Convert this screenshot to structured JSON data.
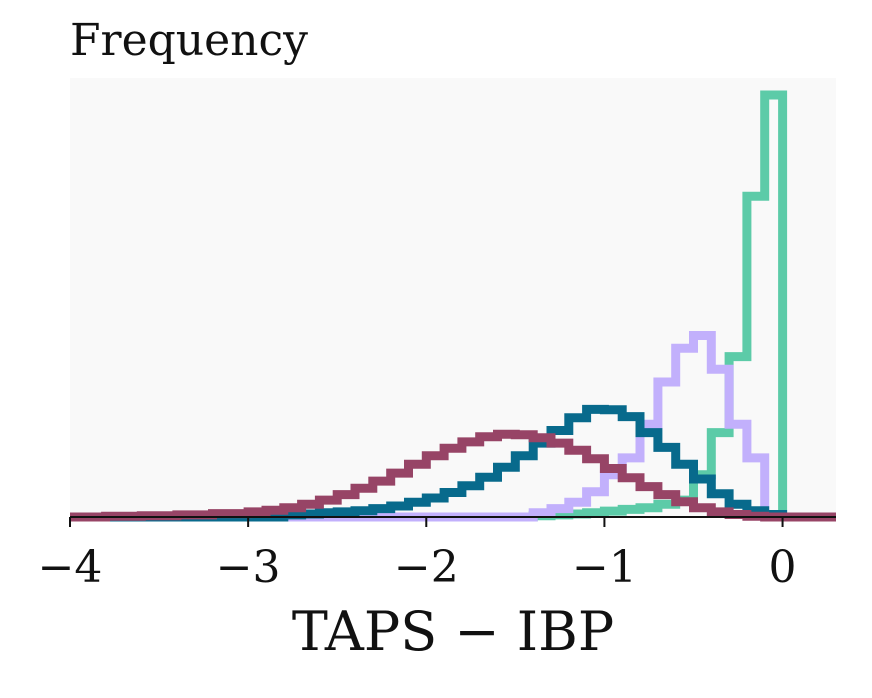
{
  "chart_data": {
    "type": "histogram",
    "title": "",
    "ylabel": "Frequency",
    "xlabel": "TAPS − IBP",
    "xlim": [
      -4.0,
      0.3
    ],
    "ylim": [
      0,
      1.0
    ],
    "xticks": [
      -4,
      -3,
      -2,
      -1,
      0
    ],
    "xtick_labels": [
      "−4",
      "−3",
      "−2",
      "−1",
      "0"
    ],
    "y_ticks_shown": false,
    "grid": false,
    "legend": "none",
    "background": "#f9f9f9",
    "series": [
      {
        "color": "#5ccba8",
        "edges": [
          -4.0,
          -1.4,
          -1.3,
          -1.2,
          -1.1,
          -1.0,
          -0.9,
          -0.8,
          -0.7,
          -0.6,
          -0.5,
          -0.4,
          -0.3,
          -0.2,
          -0.1,
          0.0,
          0.3
        ],
        "heights": [
          0.0,
          0.003,
          0.005,
          0.007,
          0.01,
          0.014,
          0.018,
          0.022,
          0.03,
          0.04,
          0.1,
          0.2,
          0.38,
          0.76,
          1.0,
          0.0
        ]
      },
      {
        "color": "#c2b0fc",
        "edges": [
          -4.0,
          -1.4,
          -1.3,
          -1.2,
          -1.1,
          -1.0,
          -0.9,
          -0.8,
          -0.7,
          -0.6,
          -0.5,
          -0.4,
          -0.3,
          -0.2,
          -0.1,
          0.0,
          0.3
        ],
        "heights": [
          0.0,
          0.01,
          0.02,
          0.035,
          0.06,
          0.1,
          0.14,
          0.22,
          0.32,
          0.4,
          0.43,
          0.35,
          0.22,
          0.14,
          0.0,
          0.0
        ]
      },
      {
        "color": "#086a8c",
        "edges": [
          -4.0,
          -2.8,
          -2.7,
          -2.6,
          -2.5,
          -2.4,
          -2.3,
          -2.2,
          -2.1,
          -2.0,
          -1.9,
          -1.8,
          -1.7,
          -1.6,
          -1.5,
          -1.4,
          -1.3,
          -1.2,
          -1.1,
          -1.0,
          -0.9,
          -0.8,
          -0.7,
          -0.6,
          -0.5,
          -0.4,
          -0.3,
          -0.2,
          -0.1,
          0.0,
          0.3
        ],
        "heights": [
          0.0,
          0.005,
          0.007,
          0.01,
          0.012,
          0.015,
          0.02,
          0.026,
          0.035,
          0.045,
          0.058,
          0.074,
          0.094,
          0.118,
          0.145,
          0.175,
          0.205,
          0.235,
          0.255,
          0.254,
          0.238,
          0.2,
          0.165,
          0.125,
          0.09,
          0.055,
          0.03,
          0.015,
          0.006,
          0.0
        ]
      },
      {
        "color": "#974466",
        "edges": [
          -4.0,
          -3.8,
          -3.6,
          -3.4,
          -3.2,
          -3.0,
          -2.9,
          -2.8,
          -2.7,
          -2.6,
          -2.5,
          -2.4,
          -2.3,
          -2.2,
          -2.1,
          -2.0,
          -1.9,
          -1.8,
          -1.7,
          -1.6,
          -1.5,
          -1.4,
          -1.3,
          -1.2,
          -1.1,
          -1.0,
          -0.9,
          -0.8,
          -0.7,
          -0.6,
          -0.5,
          -0.4,
          -0.3,
          -0.2,
          -0.1,
          0.0,
          0.3
        ],
        "heights": [
          0.0,
          0.002,
          0.003,
          0.005,
          0.008,
          0.012,
          0.016,
          0.022,
          0.03,
          0.04,
          0.053,
          0.068,
          0.085,
          0.104,
          0.125,
          0.145,
          0.163,
          0.178,
          0.19,
          0.196,
          0.195,
          0.188,
          0.175,
          0.158,
          0.138,
          0.115,
          0.093,
          0.072,
          0.053,
          0.036,
          0.022,
          0.012,
          0.006,
          0.002,
          0.0,
          0.0
        ]
      }
    ]
  }
}
